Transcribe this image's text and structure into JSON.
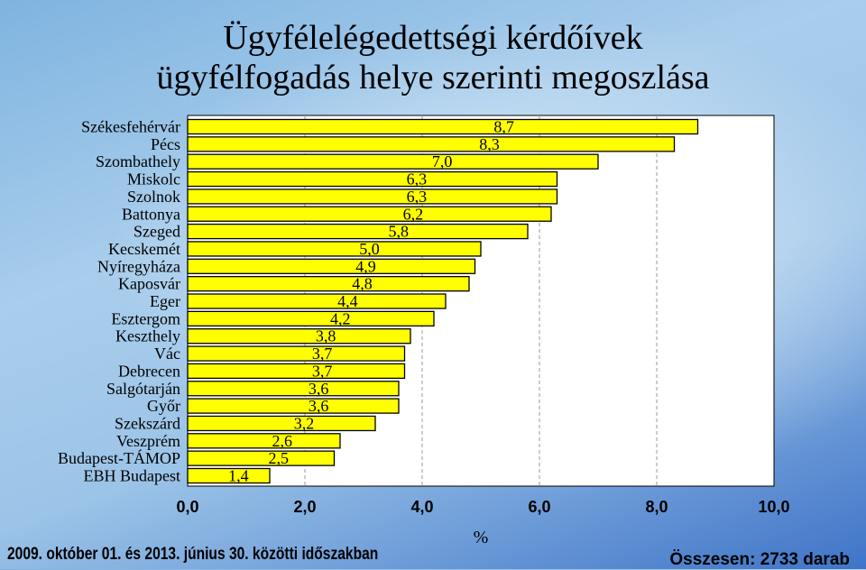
{
  "title": {
    "line1": "Ügyfélelégedettségi kérdőívek",
    "line2": "ügyfélfogadás helye szerinti megoszlása"
  },
  "footer": {
    "period": "2009. október 01. és 2013. június 30. közötti időszakban",
    "total": "Összesen:  2733 darab"
  },
  "chart_data": {
    "type": "bar",
    "orientation": "horizontal",
    "categories": [
      "Székesfehérvár",
      "Pécs",
      "Szombathely",
      "Miskolc",
      "Szolnok",
      "Battonya",
      "Szeged",
      "Kecskemét",
      "Nyíregyháza",
      "Kaposvár",
      "Eger",
      "Esztergom",
      "Keszthely",
      "Vác",
      "Debrecen",
      "Salgótarján",
      "Győr",
      "Szekszárd",
      "Veszprém",
      "Budapest-TÁMOP",
      "EBH Budapest"
    ],
    "values": [
      8.7,
      8.3,
      7.0,
      6.3,
      6.3,
      6.2,
      5.8,
      5.0,
      4.9,
      4.8,
      4.4,
      4.2,
      3.8,
      3.7,
      3.7,
      3.6,
      3.6,
      3.2,
      2.6,
      2.5,
      1.4
    ],
    "value_labels": [
      "8,7",
      "8,3",
      "7,0",
      "6,3",
      "6,3",
      "6,2",
      "5,8",
      "5,0",
      "4,9",
      "4,8",
      "4,4",
      "4,2",
      "3,8",
      "3,7",
      "3,7",
      "3,6",
      "3,6",
      "3,2",
      "2,6",
      "2,5",
      "1,4"
    ],
    "xlim": [
      0,
      10
    ],
    "x_ticks": [
      "0,0",
      "2,0",
      "4,0",
      "6,0",
      "8,0",
      "10,0"
    ],
    "xlabel": "%",
    "grid": "vertical dashed",
    "colors": {
      "bar": "#ffff00",
      "bar_border": "#000000",
      "plot_bg": "#ffffff"
    }
  }
}
